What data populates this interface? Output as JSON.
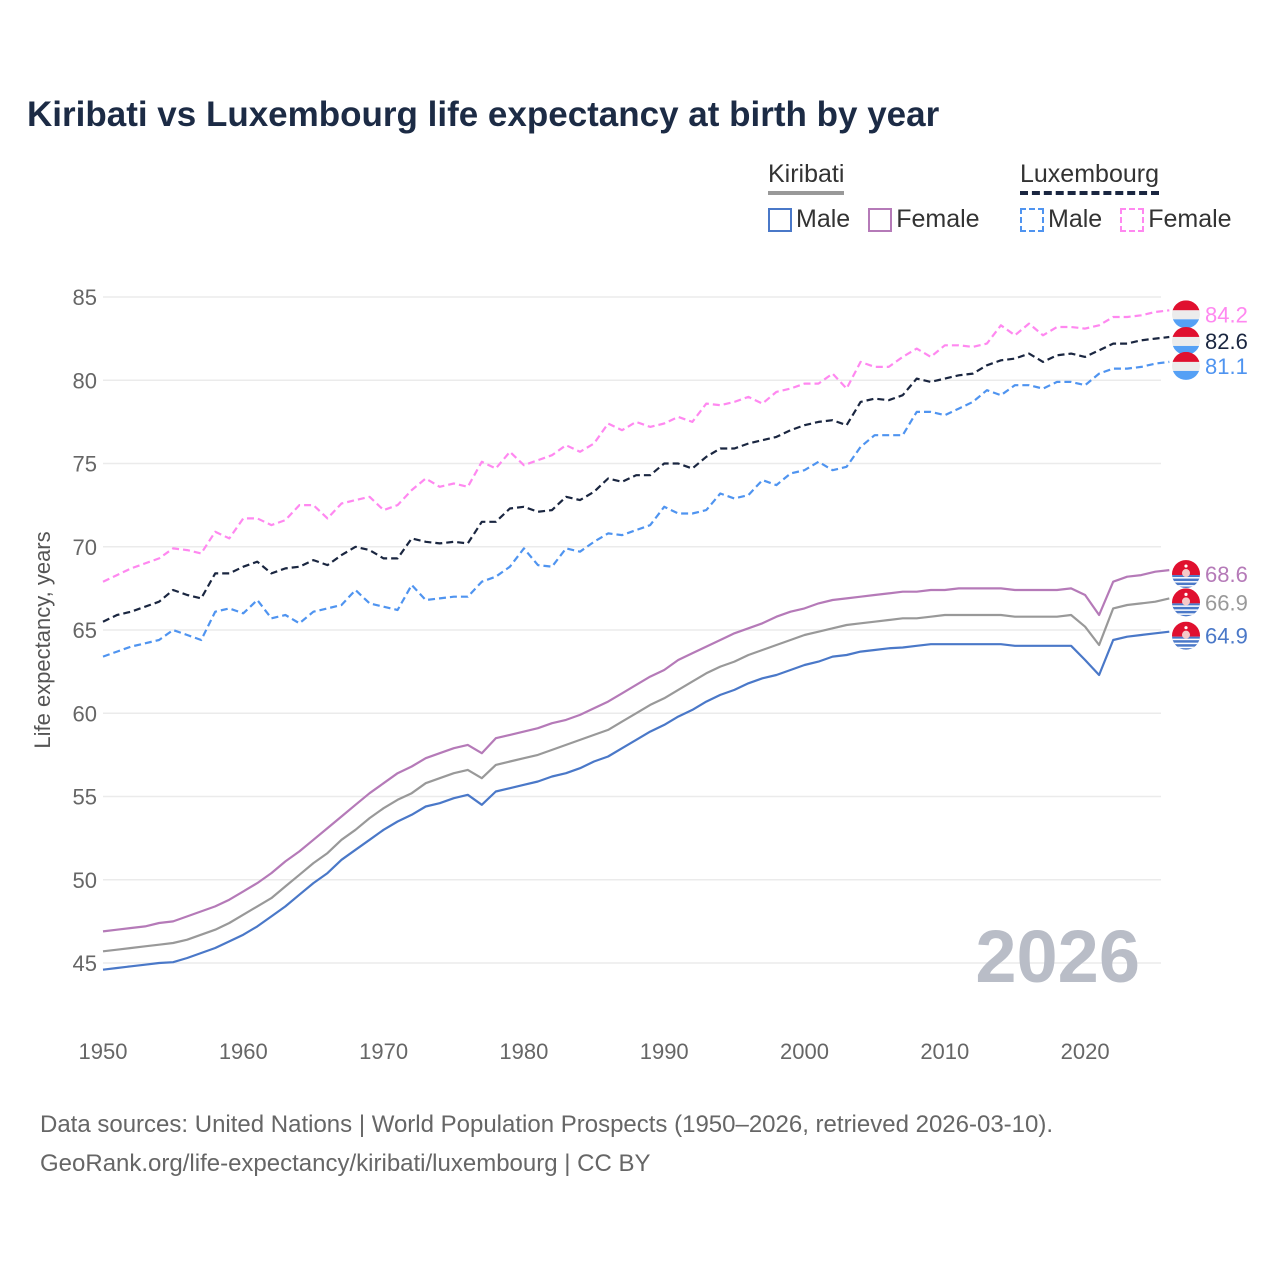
{
  "title": "Kiribati vs Luxembourg life expectancy at birth by year",
  "legend": {
    "groups": [
      {
        "name": "Kiribati",
        "items": [
          "Male",
          "Female"
        ]
      },
      {
        "name": "Luxembourg",
        "items": [
          "Male",
          "Female"
        ]
      }
    ]
  },
  "watermark_year": "2026",
  "footer": {
    "line1": "Data sources: United Nations | World Population Prospects (1950–2026, retrieved 2026-03-10).",
    "line2": "GeoRank.org/life-expectancy/kiribati/luxembourg | CC BY"
  },
  "chart_data": {
    "type": "line",
    "title": "Kiribati vs Luxembourg life expectancy at birth by year",
    "xlabel": "",
    "ylabel": "Life expectancy, years",
    "xlim": [
      1950,
      2026
    ],
    "ylim": [
      43,
      86
    ],
    "x_ticks": [
      1950,
      1960,
      1970,
      1980,
      1990,
      2000,
      2010,
      2020
    ],
    "y_ticks": [
      45,
      50,
      55,
      60,
      65,
      70,
      75,
      80,
      85
    ],
    "grid": true,
    "legend_position": "top-right",
    "x_start": 1950,
    "series": [
      {
        "name": "Luxembourg Female",
        "country": "Luxembourg",
        "color": "#ff88f0",
        "dashed": true,
        "end_label": "84.2",
        "values": [
          67.9,
          68.3,
          68.7,
          69.0,
          69.3,
          69.9,
          69.8,
          69.6,
          70.9,
          70.5,
          71.7,
          71.7,
          71.3,
          71.6,
          72.5,
          72.5,
          71.7,
          72.6,
          72.8,
          73.0,
          72.2,
          72.5,
          73.4,
          74.1,
          73.6,
          73.8,
          73.6,
          75.1,
          74.7,
          75.7,
          74.9,
          75.2,
          75.5,
          76.1,
          75.7,
          76.2,
          77.4,
          77.0,
          77.5,
          77.2,
          77.4,
          77.8,
          77.5,
          78.6,
          78.5,
          78.7,
          79.0,
          78.6,
          79.3,
          79.5,
          79.8,
          79.8,
          80.4,
          79.5,
          81.1,
          80.8,
          80.8,
          81.4,
          81.9,
          81.4,
          82.1,
          82.1,
          82.0,
          82.2,
          83.3,
          82.7,
          83.4,
          82.7,
          83.2,
          83.2,
          83.1,
          83.3,
          83.8,
          83.8,
          83.9,
          84.1,
          84.2
        ]
      },
      {
        "name": "Luxembourg Total",
        "country": "Luxembourg",
        "color": "#1a2640",
        "dashed": true,
        "end_label": "82.6",
        "values": [
          65.5,
          65.9,
          66.1,
          66.4,
          66.7,
          67.4,
          67.1,
          66.9,
          68.4,
          68.4,
          68.8,
          69.1,
          68.4,
          68.7,
          68.8,
          69.2,
          68.9,
          69.5,
          70.0,
          69.8,
          69.3,
          69.3,
          70.5,
          70.3,
          70.2,
          70.3,
          70.2,
          71.5,
          71.5,
          72.3,
          72.4,
          72.1,
          72.2,
          73.0,
          72.8,
          73.3,
          74.1,
          73.9,
          74.3,
          74.3,
          75.0,
          75.0,
          74.7,
          75.4,
          75.9,
          75.9,
          76.2,
          76.4,
          76.6,
          77.0,
          77.3,
          77.5,
          77.6,
          77.3,
          78.7,
          78.9,
          78.8,
          79.1,
          80.1,
          79.9,
          80.1,
          80.3,
          80.4,
          80.9,
          81.2,
          81.3,
          81.6,
          81.1,
          81.5,
          81.6,
          81.4,
          81.8,
          82.2,
          82.2,
          82.4,
          82.5,
          82.6
        ]
      },
      {
        "name": "Luxembourg Male",
        "country": "Luxembourg",
        "color": "#4f94f0",
        "dashed": true,
        "end_label": "81.1",
        "values": [
          63.4,
          63.7,
          64.0,
          64.2,
          64.4,
          65.0,
          64.7,
          64.4,
          66.1,
          66.3,
          66.0,
          66.8,
          65.7,
          65.9,
          65.4,
          66.1,
          66.3,
          66.5,
          67.4,
          66.6,
          66.4,
          66.2,
          67.7,
          66.8,
          66.9,
          67.0,
          67.0,
          67.9,
          68.2,
          68.8,
          69.9,
          68.9,
          68.8,
          69.9,
          69.7,
          70.3,
          70.8,
          70.7,
          71.0,
          71.3,
          72.4,
          72.0,
          72.0,
          72.2,
          73.2,
          72.9,
          73.1,
          74.0,
          73.7,
          74.4,
          74.6,
          75.1,
          74.6,
          74.8,
          76.0,
          76.7,
          76.7,
          76.7,
          78.1,
          78.1,
          77.9,
          78.3,
          78.7,
          79.4,
          79.1,
          79.7,
          79.7,
          79.5,
          79.9,
          79.9,
          79.7,
          80.4,
          80.7,
          80.7,
          80.8,
          81.0,
          81.1
        ]
      },
      {
        "name": "Kiribati Female",
        "country": "Kiribati",
        "color": "#b57ab8",
        "dashed": false,
        "end_label": "68.6",
        "values": [
          46.9,
          47.0,
          47.1,
          47.2,
          47.4,
          47.5,
          47.8,
          48.1,
          48.4,
          48.8,
          49.3,
          49.8,
          50.4,
          51.1,
          51.7,
          52.4,
          53.1,
          53.8,
          54.5,
          55.2,
          55.8,
          56.4,
          56.8,
          57.3,
          57.6,
          57.9,
          58.1,
          57.6,
          58.5,
          58.7,
          58.9,
          59.1,
          59.4,
          59.6,
          59.9,
          60.3,
          60.7,
          61.2,
          61.7,
          62.2,
          62.6,
          63.2,
          63.6,
          64.0,
          64.4,
          64.8,
          65.1,
          65.4,
          65.8,
          66.1,
          66.3,
          66.6,
          66.8,
          66.9,
          67.0,
          67.1,
          67.2,
          67.3,
          67.3,
          67.4,
          67.4,
          67.5,
          67.5,
          67.5,
          67.5,
          67.4,
          67.4,
          67.4,
          67.4,
          67.5,
          67.1,
          65.9,
          67.9,
          68.2,
          68.3,
          68.5,
          68.6
        ]
      },
      {
        "name": "Kiribati Total",
        "country": "Kiribati",
        "color": "#999999",
        "dashed": false,
        "end_label": "66.9",
        "values": [
          45.7,
          45.8,
          45.9,
          46.0,
          46.1,
          46.2,
          46.4,
          46.7,
          47.0,
          47.4,
          47.9,
          48.4,
          48.9,
          49.6,
          50.3,
          51.0,
          51.6,
          52.4,
          53.0,
          53.7,
          54.3,
          54.8,
          55.2,
          55.8,
          56.1,
          56.4,
          56.6,
          56.1,
          56.9,
          57.1,
          57.3,
          57.5,
          57.8,
          58.1,
          58.4,
          58.7,
          59.0,
          59.5,
          60.0,
          60.5,
          60.9,
          61.4,
          61.9,
          62.4,
          62.8,
          63.1,
          63.5,
          63.8,
          64.1,
          64.4,
          64.7,
          64.9,
          65.1,
          65.3,
          65.4,
          65.5,
          65.6,
          65.7,
          65.7,
          65.8,
          65.9,
          65.9,
          65.9,
          65.9,
          65.9,
          65.8,
          65.8,
          65.8,
          65.8,
          65.9,
          65.2,
          64.1,
          66.3,
          66.5,
          66.6,
          66.7,
          66.9
        ]
      },
      {
        "name": "Kiribati Male",
        "country": "Kiribati",
        "color": "#4a78c8",
        "dashed": false,
        "end_label": "64.9",
        "values": [
          44.6,
          44.7,
          44.8,
          44.9,
          45.0,
          45.05,
          45.3,
          45.6,
          45.9,
          46.3,
          46.7,
          47.2,
          47.8,
          48.4,
          49.1,
          49.8,
          50.4,
          51.2,
          51.8,
          52.4,
          53.0,
          53.5,
          53.9,
          54.4,
          54.6,
          54.9,
          55.1,
          54.5,
          55.3,
          55.5,
          55.7,
          55.9,
          56.2,
          56.4,
          56.7,
          57.1,
          57.4,
          57.9,
          58.4,
          58.9,
          59.3,
          59.8,
          60.2,
          60.7,
          61.1,
          61.4,
          61.8,
          62.1,
          62.3,
          62.6,
          62.9,
          63.1,
          63.4,
          63.5,
          63.7,
          63.8,
          63.9,
          63.95,
          64.05,
          64.15,
          64.15,
          64.15,
          64.15,
          64.15,
          64.15,
          64.05,
          64.05,
          64.05,
          64.05,
          64.05,
          63.2,
          62.3,
          64.4,
          64.6,
          64.7,
          64.8,
          64.9
        ]
      }
    ]
  },
  "colors": {
    "kiribati_legend": "#999999",
    "luxembourg_legend": "#1a2640",
    "kiribati_male": "#4a78c8",
    "kiribati_female": "#b57ab8",
    "luxembourg_male": "#4f94f0",
    "luxembourg_female": "#ff88f0"
  }
}
